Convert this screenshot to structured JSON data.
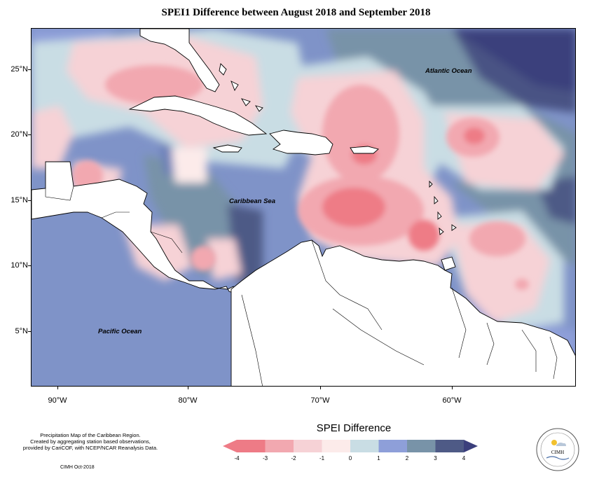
{
  "title": "SPEI1 Difference between August 2018 and September 2018",
  "map": {
    "y_ticks": [
      "25°N",
      "20°N",
      "15°N",
      "10°N",
      "5°N"
    ],
    "x_ticks": [
      "90°W",
      "80°W",
      "70°W",
      "60°W"
    ],
    "labels": {
      "atlantic": "Atlantic Ocean",
      "caribbean": "Caribbean Sea",
      "pacific": "Pacific Ocean"
    }
  },
  "legend": {
    "title": "SPEI Difference",
    "ticks": [
      "-4",
      "-3",
      "-2",
      "-1",
      "0",
      "1",
      "2",
      "3",
      "4"
    ],
    "colors": [
      "#ee7b86",
      "#f2a8b0",
      "#f6d2d6",
      "#fcebea",
      "#c9dde4",
      "#8e9fd9",
      "#7893a8",
      "#4e5a86",
      "#3b3f7c"
    ]
  },
  "footer": {
    "line1": "Precipitation Map of the Caribbean Region.",
    "line2": "Created by aggregating station based observations,",
    "line3": "provided by CariCOF, with NCEP/NCAR Reanalysis Data.",
    "credit": "CIMH Oct-2018"
  },
  "logo": {
    "text": "CIMH"
  }
}
